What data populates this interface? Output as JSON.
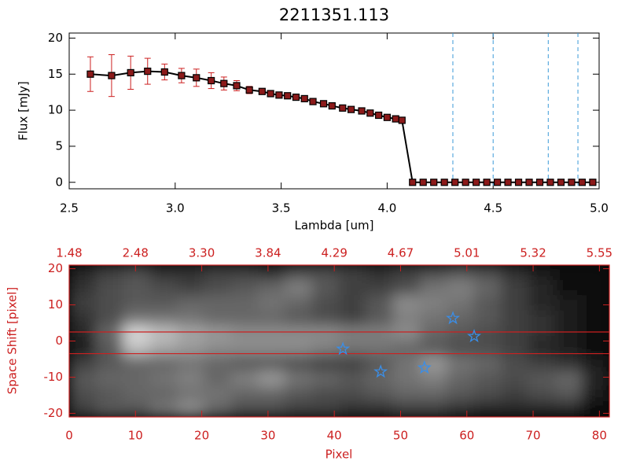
{
  "chart_data": [
    {
      "type": "line",
      "title": "2211351.113",
      "xlabel": "Lambda [um]",
      "ylabel": "Flux [mJy]",
      "x": [
        2.6,
        2.7,
        2.79,
        2.87,
        2.95,
        3.03,
        3.1,
        3.17,
        3.23,
        3.29,
        3.35,
        3.41,
        3.45,
        3.49,
        3.53,
        3.57,
        3.61,
        3.65,
        3.7,
        3.74,
        3.79,
        3.83,
        3.88,
        3.92,
        3.96,
        4.0,
        4.04,
        4.07,
        4.12,
        4.17,
        4.22,
        4.27,
        4.32,
        4.37,
        4.42,
        4.47,
        4.52,
        4.57,
        4.62,
        4.67,
        4.72,
        4.77,
        4.82,
        4.87,
        4.92,
        4.97
      ],
      "values": [
        15.0,
        14.8,
        15.2,
        15.4,
        15.3,
        14.8,
        14.5,
        14.1,
        13.7,
        13.4,
        12.8,
        12.6,
        12.3,
        12.1,
        12.0,
        11.8,
        11.6,
        11.2,
        10.9,
        10.6,
        10.3,
        10.1,
        9.9,
        9.6,
        9.3,
        9.0,
        8.8,
        8.6,
        0,
        0,
        0,
        0,
        0,
        0,
        0,
        0,
        0,
        0,
        0,
        0,
        0,
        0,
        0,
        0,
        0,
        0
      ],
      "errors": [
        2.4,
        2.9,
        2.3,
        1.8,
        1.1,
        1.0,
        1.2,
        1.1,
        0.9,
        0.7,
        0.5,
        0.4,
        0.3,
        0.3,
        0.3,
        0.3,
        0.3,
        0.3,
        0.3,
        0.3,
        0.3,
        0.3,
        0.3,
        0.3,
        0.3,
        0.3,
        0.3,
        0.3,
        0,
        0,
        0,
        0,
        0,
        0,
        0,
        0,
        0,
        0,
        0,
        0,
        0,
        0,
        0,
        0,
        0,
        0
      ],
      "color": "#000000",
      "marker_color": "#8b1a1a",
      "error_color": "#cc2020",
      "vlines": [
        4.31,
        4.5,
        4.76,
        4.9
      ],
      "vline_color": "#3a9ad9",
      "xlim": [
        2.5,
        5.0
      ],
      "xticks": [
        2.5,
        {
          "value": 3,
          "label": "3.0"
        },
        3.5,
        {
          "value": 4,
          "label": "4.0"
        },
        4.5,
        {
          "value": 5,
          "label": "5.0"
        }
      ],
      "ylim": [
        -0.9,
        20.7
      ],
      "yticks": [
        0,
        5,
        10,
        15,
        20
      ]
    },
    {
      "type": "heatmap",
      "xlabel": "Pixel",
      "ylabel": "Space Shift [pixel]",
      "axis_color": "#cc2020",
      "xlim": [
        0,
        81.5
      ],
      "xticks": [
        0,
        10,
        20,
        30,
        40,
        50,
        60,
        70,
        80
      ],
      "x2ticks": [
        {
          "value": 0,
          "label": "1.48"
        },
        {
          "value": 10,
          "label": "2.48"
        },
        {
          "value": 20,
          "label": "3.30"
        },
        {
          "value": 30,
          "label": "3.84"
        },
        {
          "value": 40,
          "label": "4.29"
        },
        {
          "value": 50,
          "label": "4.67"
        },
        {
          "value": 60,
          "label": "5.01"
        },
        {
          "value": 70,
          "label": "5.32"
        },
        {
          "value": 80,
          "label": "5.55"
        }
      ],
      "ylim": [
        -21,
        21
      ],
      "yticks": [
        -20,
        -10,
        0,
        10,
        20
      ],
      "zmax": 100,
      "z": [
        [
          15,
          25,
          30,
          20,
          20,
          25,
          25,
          20,
          30,
          30,
          25,
          20,
          25,
          30,
          35,
          30,
          20,
          10,
          5,
          5
        ],
        [
          20,
          30,
          35,
          30,
          25,
          30,
          35,
          40,
          50,
          35,
          25,
          25,
          30,
          45,
          50,
          40,
          25,
          15,
          5,
          5
        ],
        [
          25,
          30,
          35,
          35,
          40,
          40,
          40,
          45,
          40,
          30,
          25,
          35,
          55,
          50,
          45,
          35,
          25,
          15,
          10,
          5
        ],
        [
          20,
          30,
          45,
          45,
          45,
          40,
          40,
          40,
          35,
          30,
          25,
          35,
          50,
          45,
          40,
          35,
          25,
          20,
          10,
          5
        ],
        [
          15,
          40,
          85,
          75,
          65,
          60,
          55,
          55,
          55,
          55,
          50,
          50,
          55,
          40,
          35,
          30,
          25,
          20,
          10,
          5
        ],
        [
          10,
          35,
          75,
          65,
          60,
          55,
          55,
          55,
          55,
          50,
          45,
          45,
          40,
          35,
          30,
          30,
          25,
          15,
          10,
          5
        ],
        [
          25,
          35,
          40,
          40,
          45,
          40,
          35,
          35,
          30,
          25,
          25,
          35,
          45,
          60,
          45,
          40,
          30,
          25,
          20,
          10
        ],
        [
          35,
          40,
          40,
          45,
          50,
          40,
          50,
          60,
          45,
          40,
          35,
          40,
          45,
          50,
          40,
          35,
          30,
          35,
          40,
          15
        ],
        [
          30,
          35,
          40,
          40,
          45,
          45,
          40,
          40,
          35,
          30,
          30,
          35,
          40,
          40,
          35,
          30,
          25,
          30,
          35,
          10
        ],
        [
          25,
          35,
          35,
          45,
          55,
          40,
          30,
          30,
          25,
          25,
          20,
          20,
          25,
          25,
          20,
          15,
          15,
          15,
          15,
          5
        ]
      ],
      "hlines": [
        2.5,
        -3.5
      ],
      "hline_color": "#cc2020",
      "stars": {
        "color": "#3a8ee8",
        "x": [
          41.3,
          47.0,
          53.6,
          57.9,
          61.1
        ],
        "values": [
          -2.2,
          -8.5,
          -7.4,
          6.3,
          1.3
        ]
      }
    }
  ]
}
